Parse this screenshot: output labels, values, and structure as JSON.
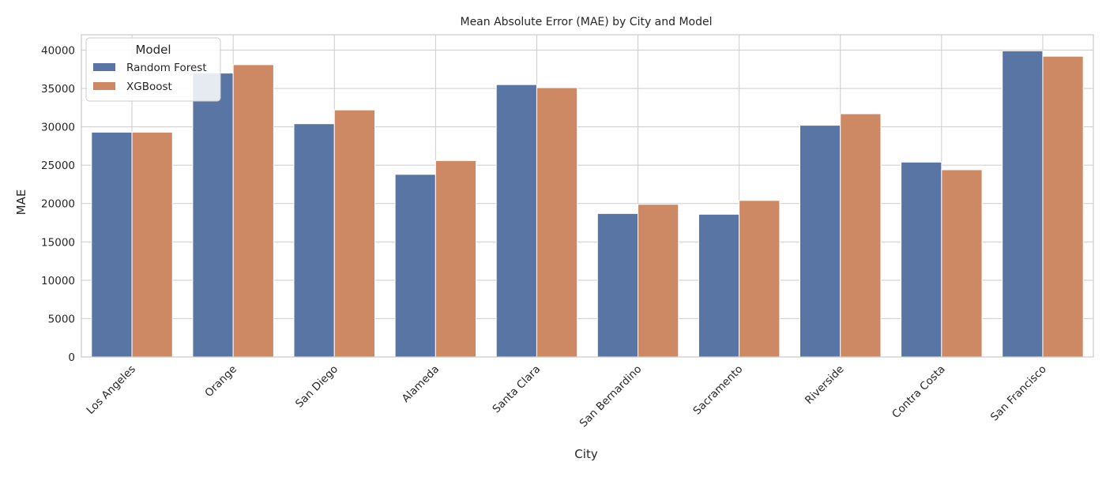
{
  "chart_data": {
    "type": "bar",
    "title": "Mean Absolute Error (MAE) by City and Model",
    "xlabel": "City",
    "ylabel": "MAE",
    "ylim": [
      0,
      42000
    ],
    "yticks": [
      0,
      5000,
      10000,
      15000,
      20000,
      25000,
      30000,
      35000,
      40000
    ],
    "grid": true,
    "legend": {
      "title": "Model",
      "placement": "top-left"
    },
    "categories": [
      "Los Angeles",
      "Orange",
      "San Diego",
      "Alameda",
      "Santa Clara",
      "San Bernardino",
      "Sacramento",
      "Riverside",
      "Contra Costa",
      "San Francisco"
    ],
    "series": [
      {
        "name": "Random Forest",
        "color": "#5875a4",
        "values": [
          29300,
          37000,
          30400,
          23800,
          35500,
          18700,
          18600,
          30200,
          25400,
          39900
        ]
      },
      {
        "name": "XGBoost",
        "color": "#cc8963",
        "values": [
          29300,
          38100,
          32200,
          25600,
          35100,
          19900,
          20400,
          31700,
          24400,
          39200
        ]
      }
    ]
  }
}
